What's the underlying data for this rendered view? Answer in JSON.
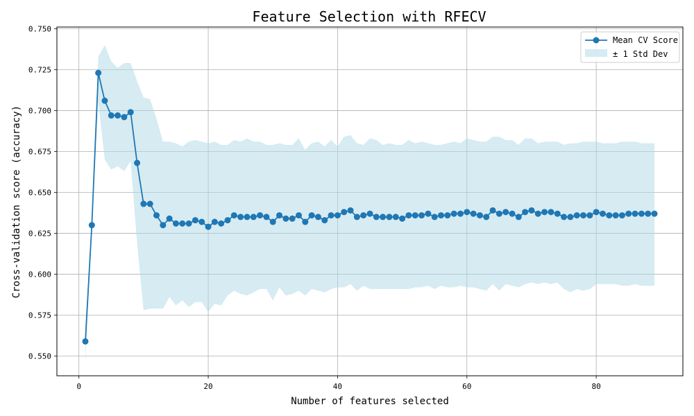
{
  "chart_data": {
    "type": "line",
    "title": "Feature Selection with RFECV",
    "xlabel": "Number of features selected",
    "ylabel": "Cross-validation score (accuracy)",
    "xlim": [
      -3.4,
      93.4
    ],
    "ylim": [
      0.538,
      0.751
    ],
    "x_ticks": [
      0,
      20,
      40,
      60,
      80
    ],
    "y_ticks": [
      0.55,
      0.575,
      0.6,
      0.625,
      0.65,
      0.675,
      0.7,
      0.725,
      0.75
    ],
    "y_tick_labels": [
      "0.550",
      "0.575",
      "0.600",
      "0.625",
      "0.650",
      "0.675",
      "0.700",
      "0.725",
      "0.750"
    ],
    "grid": true,
    "legend_position": "top-right",
    "colors": {
      "line": "#1f77b4",
      "band": "#add8e6"
    },
    "series": [
      {
        "name": "Mean CV Score",
        "x": [
          1,
          2,
          3,
          4,
          5,
          6,
          7,
          8,
          9,
          10,
          11,
          12,
          13,
          14,
          15,
          16,
          17,
          18,
          19,
          20,
          21,
          22,
          23,
          24,
          25,
          26,
          27,
          28,
          29,
          30,
          31,
          32,
          33,
          34,
          35,
          36,
          37,
          38,
          39,
          40,
          41,
          42,
          43,
          44,
          45,
          46,
          47,
          48,
          49,
          50,
          51,
          52,
          53,
          54,
          55,
          56,
          57,
          58,
          59,
          60,
          61,
          62,
          63,
          64,
          65,
          66,
          67,
          68,
          69,
          70,
          71,
          72,
          73,
          74,
          75,
          76,
          77,
          78,
          79,
          80,
          81,
          82,
          83,
          84,
          85,
          86,
          87,
          88,
          89
        ],
        "values": [
          0.559,
          0.63,
          0.723,
          0.706,
          0.697,
          0.697,
          0.696,
          0.699,
          0.668,
          0.643,
          0.643,
          0.636,
          0.63,
          0.634,
          0.631,
          0.631,
          0.631,
          0.633,
          0.632,
          0.629,
          0.632,
          0.631,
          0.633,
          0.636,
          0.635,
          0.635,
          0.635,
          0.636,
          0.635,
          0.632,
          0.636,
          0.634,
          0.634,
          0.636,
          0.632,
          0.636,
          0.635,
          0.633,
          0.636,
          0.636,
          0.638,
          0.639,
          0.635,
          0.636,
          0.637,
          0.635,
          0.635,
          0.635,
          0.635,
          0.634,
          0.636,
          0.636,
          0.636,
          0.637,
          0.635,
          0.636,
          0.636,
          0.637,
          0.637,
          0.638,
          0.637,
          0.636,
          0.635,
          0.639,
          0.637,
          0.638,
          0.637,
          0.635,
          0.638,
          0.639,
          0.637,
          0.638,
          0.638,
          0.637,
          0.635,
          0.635,
          0.636,
          0.636,
          0.636,
          0.638,
          0.637,
          0.636,
          0.636,
          0.636,
          0.637,
          0.637,
          0.637,
          0.637,
          0.637
        ]
      },
      {
        "name": "± 1 Std Dev",
        "x": [
          1,
          2,
          3,
          4,
          5,
          6,
          7,
          8,
          9,
          10,
          11,
          12,
          13,
          14,
          15,
          16,
          17,
          18,
          19,
          20,
          21,
          22,
          23,
          24,
          25,
          26,
          27,
          28,
          29,
          30,
          31,
          32,
          33,
          34,
          35,
          36,
          37,
          38,
          39,
          40,
          41,
          42,
          43,
          44,
          45,
          46,
          47,
          48,
          49,
          50,
          51,
          52,
          53,
          54,
          55,
          56,
          57,
          58,
          59,
          60,
          61,
          62,
          63,
          64,
          65,
          66,
          67,
          68,
          69,
          70,
          71,
          72,
          73,
          74,
          75,
          76,
          77,
          78,
          79,
          80,
          81,
          82,
          83,
          84,
          85,
          86,
          87,
          88,
          89
        ],
        "upper": [
          0.57,
          0.63,
          0.733,
          0.74,
          0.73,
          0.726,
          0.729,
          0.729,
          0.718,
          0.708,
          0.707,
          0.695,
          0.681,
          0.681,
          0.68,
          0.678,
          0.681,
          0.682,
          0.681,
          0.68,
          0.681,
          0.679,
          0.679,
          0.682,
          0.681,
          0.683,
          0.681,
          0.681,
          0.679,
          0.679,
          0.68,
          0.679,
          0.679,
          0.683,
          0.676,
          0.68,
          0.681,
          0.678,
          0.682,
          0.678,
          0.684,
          0.685,
          0.68,
          0.679,
          0.683,
          0.682,
          0.679,
          0.68,
          0.679,
          0.679,
          0.682,
          0.68,
          0.681,
          0.68,
          0.679,
          0.679,
          0.68,
          0.681,
          0.68,
          0.683,
          0.682,
          0.681,
          0.681,
          0.684,
          0.684,
          0.682,
          0.682,
          0.679,
          0.683,
          0.683,
          0.68,
          0.681,
          0.681,
          0.681,
          0.679,
          0.68,
          0.68,
          0.681,
          0.681,
          0.681,
          0.68,
          0.68,
          0.68,
          0.681,
          0.681,
          0.681,
          0.68,
          0.68,
          0.68
        ],
        "lower": [
          0.546,
          0.63,
          0.705,
          0.67,
          0.664,
          0.666,
          0.663,
          0.669,
          0.619,
          0.578,
          0.579,
          0.579,
          0.579,
          0.586,
          0.581,
          0.584,
          0.58,
          0.583,
          0.583,
          0.577,
          0.582,
          0.581,
          0.587,
          0.59,
          0.588,
          0.587,
          0.589,
          0.591,
          0.591,
          0.584,
          0.592,
          0.587,
          0.588,
          0.59,
          0.587,
          0.591,
          0.59,
          0.589,
          0.591,
          0.592,
          0.592,
          0.594,
          0.59,
          0.593,
          0.591,
          0.591,
          0.591,
          0.591,
          0.591,
          0.591,
          0.591,
          0.592,
          0.592,
          0.593,
          0.591,
          0.593,
          0.592,
          0.592,
          0.593,
          0.592,
          0.592,
          0.591,
          0.59,
          0.594,
          0.59,
          0.594,
          0.593,
          0.592,
          0.594,
          0.595,
          0.594,
          0.595,
          0.594,
          0.595,
          0.591,
          0.589,
          0.591,
          0.59,
          0.591,
          0.594,
          0.594,
          0.594,
          0.594,
          0.593,
          0.593,
          0.594,
          0.593,
          0.593,
          0.593
        ]
      }
    ]
  }
}
